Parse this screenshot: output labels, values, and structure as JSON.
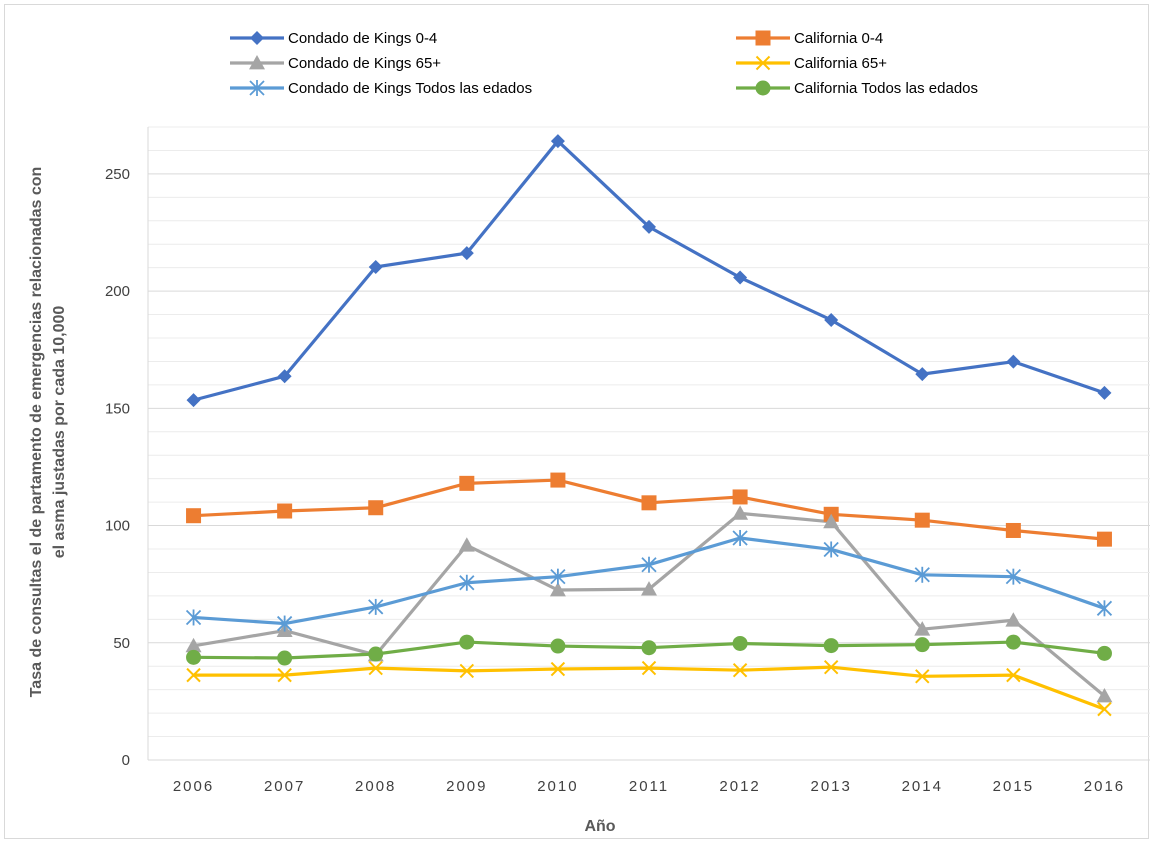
{
  "chart_data": {
    "type": "line",
    "title": "",
    "xlabel": "Año",
    "ylabel_lines": [
      "Tasa de consultas el de partamento de emergencias relacionadas  con",
      "el asma  justadas  por cada 10,000"
    ],
    "categories": [
      "2006",
      "2007",
      "2008",
      "2009",
      "2010",
      "2011",
      "2012",
      "2013",
      "2014",
      "2015",
      "2016"
    ],
    "ylim": [
      0,
      270
    ],
    "yticks": [
      0,
      50,
      100,
      150,
      200,
      250
    ],
    "grid": true,
    "legend_position": "top",
    "series": [
      {
        "name": "Condado de Kings 0-4",
        "color": "#4472c4",
        "marker": "diamond",
        "values": [
          153.5,
          163.7,
          210.3,
          216.2,
          264.0,
          227.4,
          205.8,
          187.7,
          164.6,
          169.9,
          156.6
        ]
      },
      {
        "name": "California 0-4",
        "color": "#ed7d31",
        "marker": "square",
        "values": [
          104.2,
          106.2,
          107.6,
          118.0,
          119.4,
          109.7,
          112.2,
          104.8,
          102.3,
          97.9,
          94.2
        ]
      },
      {
        "name": "Condado de Kings 65+",
        "color": "#a5a5a5",
        "marker": "triangle",
        "values": [
          48.7,
          55.2,
          44.8,
          91.6,
          72.5,
          72.9,
          105.2,
          101.6,
          55.8,
          59.6,
          27.3
        ]
      },
      {
        "name": "California 65+",
        "color": "#ffc000",
        "marker": "x",
        "values": [
          36.2,
          36.2,
          39.2,
          38.0,
          38.8,
          39.2,
          38.3,
          39.6,
          35.7,
          36.2,
          21.7
        ]
      },
      {
        "name": "Condado de Kings Todos las edados",
        "color": "#5b9bd5",
        "marker": "asterisk",
        "values": [
          60.8,
          58.2,
          65.3,
          75.6,
          78.2,
          83.3,
          94.7,
          89.8,
          79.0,
          78.2,
          64.7
        ]
      },
      {
        "name": "California Todos las edados",
        "color": "#70ad47",
        "marker": "circle",
        "values": [
          43.8,
          43.5,
          45.2,
          50.3,
          48.6,
          47.9,
          49.7,
          48.8,
          49.2,
          50.3,
          45.5
        ]
      }
    ]
  }
}
